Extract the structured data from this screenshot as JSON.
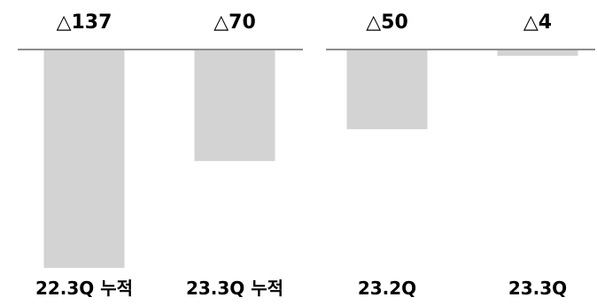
{
  "chart_data": [
    {
      "type": "bar",
      "categories": [
        "22.3Q 누적",
        "23.3Q 누적"
      ],
      "values": [
        -137,
        -70
      ],
      "value_labels": [
        "△137",
        "△70"
      ],
      "ylim": [
        -137,
        0
      ],
      "grid": false,
      "legend": "none"
    },
    {
      "type": "bar",
      "categories": [
        "23.2Q",
        "23.3Q"
      ],
      "values": [
        -50,
        -4
      ],
      "value_labels": [
        "△50",
        "△4"
      ],
      "ylim": [
        -137,
        0
      ],
      "grid": false,
      "legend": "none"
    }
  ],
  "colors": {
    "bar": "#d3d3d3",
    "baseline": "#8c8c8c",
    "text": "#000000"
  }
}
